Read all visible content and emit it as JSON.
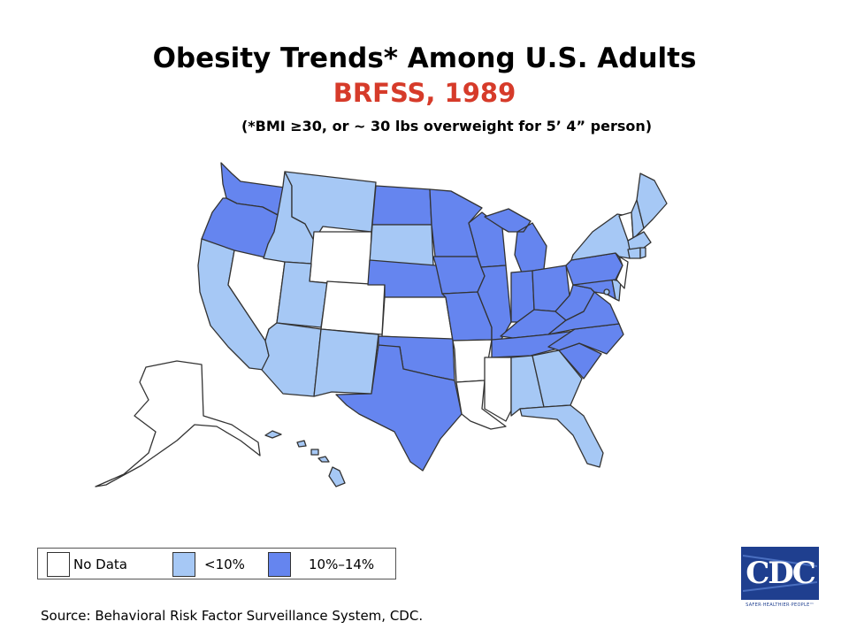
{
  "header": {
    "title": "Obesity Trends* Among U.S. Adults",
    "subtitle": "BRFSS, 1989",
    "note": "(*BMI ≥30, or ~ 30 lbs overweight for 5’ 4” person)"
  },
  "colors": {
    "title": "#000000",
    "subtitle": "#d63b2a",
    "no_data": "#ffffff",
    "lt10": "#a6c8f5",
    "10to14": "#6585ef",
    "border": "#333333"
  },
  "legend": {
    "items": [
      {
        "label": "No Data",
        "category": "no_data"
      },
      {
        "label": "<10%",
        "category": "lt10"
      },
      {
        "label": "10%–14%",
        "category": "10to14"
      }
    ]
  },
  "state_categories": {
    "WA": "10to14",
    "OR": "10to14",
    "CA": "lt10",
    "NV": "no_data",
    "ID": "lt10",
    "MT": "lt10",
    "WY": "no_data",
    "UT": "lt10",
    "CO": "no_data",
    "AZ": "lt10",
    "NM": "lt10",
    "ND": "10to14",
    "SD": "lt10",
    "NE": "10to14",
    "KS": "no_data",
    "OK": "10to14",
    "TX": "10to14",
    "MN": "10to14",
    "IA": "10to14",
    "MO": "10to14",
    "AR": "no_data",
    "LA": "no_data",
    "WI": "10to14",
    "IL": "10to14",
    "MI": "10to14",
    "IN": "10to14",
    "OH": "10to14",
    "KY": "10to14",
    "TN": "10to14",
    "MS": "no_data",
    "AL": "lt10",
    "GA": "lt10",
    "FL": "lt10",
    "SC": "10to14",
    "NC": "10to14",
    "VA": "10to14",
    "WV": "10to14",
    "MD": "10to14",
    "DE": "lt10",
    "PA": "10to14",
    "NJ": "no_data",
    "NY": "lt10",
    "CT": "lt10",
    "RI": "lt10",
    "MA": "lt10",
    "VT": "no_data",
    "NH": "lt10",
    "ME": "lt10",
    "AK": "no_data",
    "HI": "lt10",
    "DC": "lt10"
  },
  "source": "Source: Behavioral Risk Factor Surveillance System, CDC.",
  "logo": {
    "text": "CDC",
    "tagline": "SAFER·HEALTHIER·PEOPLE™"
  }
}
